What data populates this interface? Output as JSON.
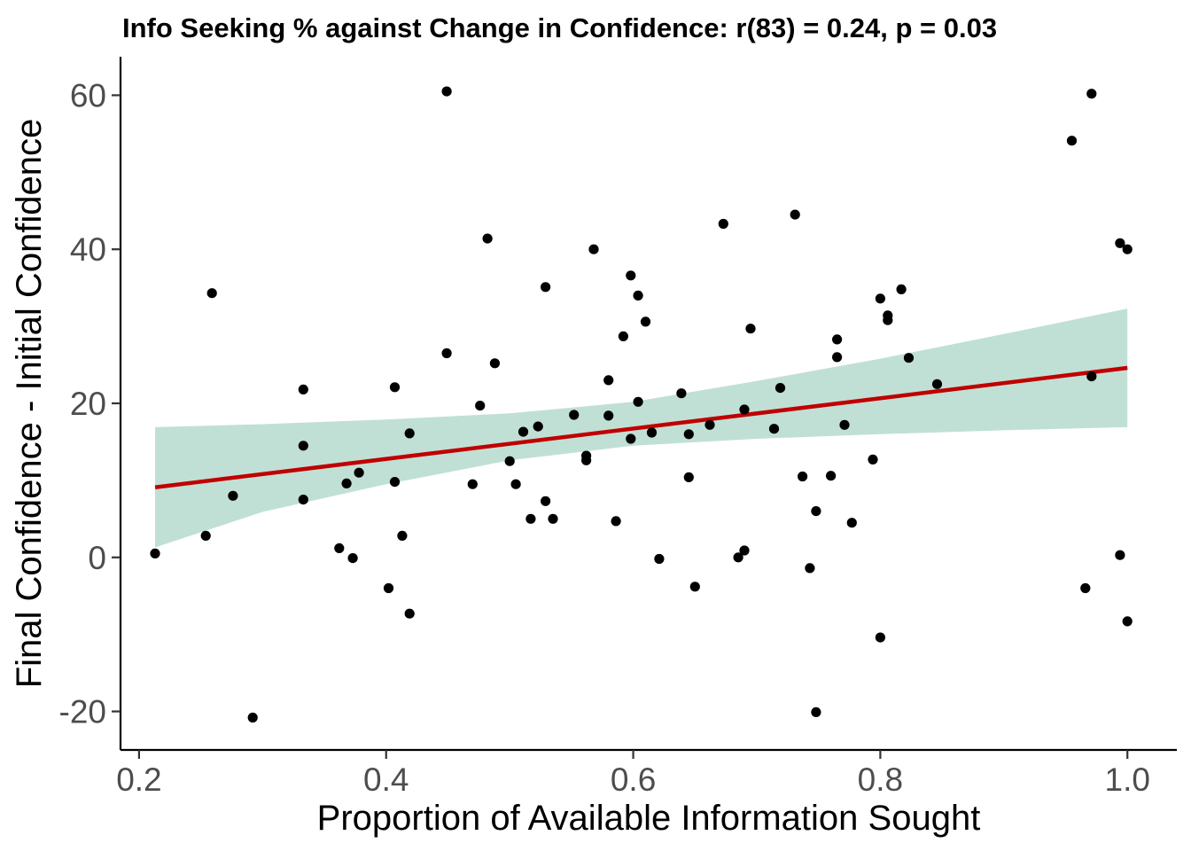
{
  "chart_data": {
    "type": "scatter",
    "title": "Info Seeking % against Change in Confidence: r(83) = 0.24, p = 0.03",
    "xlabel": "Proportion of Available Information Sought",
    "ylabel": "Final Confidence - Initial Confidence",
    "xlim": [
      0.185,
      1.04
    ],
    "ylim": [
      -25,
      65
    ],
    "xticks": [
      0.2,
      0.4,
      0.6,
      0.8,
      1.0
    ],
    "xtick_labels": [
      "0.2",
      "0.4",
      "0.6",
      "0.8",
      "1.0"
    ],
    "yticks": [
      -20,
      0,
      20,
      40,
      60
    ],
    "ytick_labels": [
      "-20",
      "0",
      "20",
      "40",
      "60"
    ],
    "grid": false,
    "legend": "none",
    "colors": {
      "points": "#000000",
      "fit_line": "#c00000",
      "ribbon": "#9fcfbf"
    },
    "points": [
      {
        "x": 0.213,
        "y": 0.5
      },
      {
        "x": 0.254,
        "y": 2.8
      },
      {
        "x": 0.259,
        "y": 34.3
      },
      {
        "x": 0.276,
        "y": 8.0
      },
      {
        "x": 0.292,
        "y": -20.8
      },
      {
        "x": 0.333,
        "y": 21.8
      },
      {
        "x": 0.333,
        "y": 14.5
      },
      {
        "x": 0.333,
        "y": 7.5
      },
      {
        "x": 0.362,
        "y": 1.2
      },
      {
        "x": 0.368,
        "y": 9.6
      },
      {
        "x": 0.373,
        "y": -0.1
      },
      {
        "x": 0.378,
        "y": 11.0
      },
      {
        "x": 0.402,
        "y": -4.0
      },
      {
        "x": 0.407,
        "y": 22.1
      },
      {
        "x": 0.407,
        "y": 9.8
      },
      {
        "x": 0.413,
        "y": 2.8
      },
      {
        "x": 0.419,
        "y": 16.1
      },
      {
        "x": 0.419,
        "y": -7.3
      },
      {
        "x": 0.449,
        "y": 60.5
      },
      {
        "x": 0.449,
        "y": 26.5
      },
      {
        "x": 0.47,
        "y": 9.5
      },
      {
        "x": 0.476,
        "y": 19.7
      },
      {
        "x": 0.482,
        "y": 41.4
      },
      {
        "x": 0.488,
        "y": 25.2
      },
      {
        "x": 0.5,
        "y": 12.5
      },
      {
        "x": 0.505,
        "y": 9.5
      },
      {
        "x": 0.511,
        "y": 16.3
      },
      {
        "x": 0.517,
        "y": 5.0
      },
      {
        "x": 0.523,
        "y": 17.0
      },
      {
        "x": 0.529,
        "y": 35.1
      },
      {
        "x": 0.529,
        "y": 7.3
      },
      {
        "x": 0.535,
        "y": 5.0
      },
      {
        "x": 0.552,
        "y": 18.5
      },
      {
        "x": 0.562,
        "y": 13.2
      },
      {
        "x": 0.562,
        "y": 12.6
      },
      {
        "x": 0.568,
        "y": 40.0
      },
      {
        "x": 0.58,
        "y": 23.0
      },
      {
        "x": 0.58,
        "y": 18.4
      },
      {
        "x": 0.586,
        "y": 4.7
      },
      {
        "x": 0.592,
        "y": 28.7
      },
      {
        "x": 0.598,
        "y": 36.6
      },
      {
        "x": 0.598,
        "y": 15.4
      },
      {
        "x": 0.604,
        "y": 34.0
      },
      {
        "x": 0.604,
        "y": 20.2
      },
      {
        "x": 0.61,
        "y": 30.6
      },
      {
        "x": 0.615,
        "y": 16.2
      },
      {
        "x": 0.621,
        "y": -0.2
      },
      {
        "x": 0.639,
        "y": 21.3
      },
      {
        "x": 0.645,
        "y": 16.0
      },
      {
        "x": 0.645,
        "y": 10.4
      },
      {
        "x": 0.65,
        "y": -3.8
      },
      {
        "x": 0.662,
        "y": 17.2
      },
      {
        "x": 0.673,
        "y": 43.3
      },
      {
        "x": 0.685,
        "y": 0.0
      },
      {
        "x": 0.69,
        "y": 19.2
      },
      {
        "x": 0.69,
        "y": 0.9
      },
      {
        "x": 0.695,
        "y": 29.7
      },
      {
        "x": 0.714,
        "y": 16.7
      },
      {
        "x": 0.719,
        "y": 22.0
      },
      {
        "x": 0.731,
        "y": 44.5
      },
      {
        "x": 0.737,
        "y": 10.5
      },
      {
        "x": 0.743,
        "y": -1.4
      },
      {
        "x": 0.748,
        "y": 6.0
      },
      {
        "x": 0.748,
        "y": -20.1
      },
      {
        "x": 0.76,
        "y": 10.6
      },
      {
        "x": 0.765,
        "y": 28.3
      },
      {
        "x": 0.765,
        "y": 26.0
      },
      {
        "x": 0.771,
        "y": 17.2
      },
      {
        "x": 0.777,
        "y": 4.5
      },
      {
        "x": 0.794,
        "y": 12.7
      },
      {
        "x": 0.8,
        "y": 33.6
      },
      {
        "x": 0.8,
        "y": -10.4
      },
      {
        "x": 0.806,
        "y": 31.4
      },
      {
        "x": 0.806,
        "y": 30.8
      },
      {
        "x": 0.817,
        "y": 34.8
      },
      {
        "x": 0.823,
        "y": 25.9
      },
      {
        "x": 0.846,
        "y": 22.5
      },
      {
        "x": 0.955,
        "y": 54.1
      },
      {
        "x": 0.966,
        "y": -4.0
      },
      {
        "x": 0.971,
        "y": 60.2
      },
      {
        "x": 0.971,
        "y": 23.5
      },
      {
        "x": 0.994,
        "y": 40.8
      },
      {
        "x": 0.994,
        "y": 0.3
      },
      {
        "x": 1.0,
        "y": 40.0
      },
      {
        "x": 1.0,
        "y": -8.3
      }
    ],
    "fit_line": {
      "x": [
        0.213,
        1.0
      ],
      "y": [
        9.1,
        24.6
      ]
    },
    "confidence_band": {
      "x": [
        0.213,
        0.3,
        0.4,
        0.5,
        0.6,
        0.7,
        0.8,
        0.9,
        1.0
      ],
      "lower": [
        1.3,
        5.9,
        9.5,
        12.6,
        14.5,
        15.4,
        16.0,
        16.5,
        16.9
      ],
      "upper": [
        16.9,
        17.3,
        17.9,
        18.7,
        20.2,
        22.9,
        25.8,
        29.0,
        32.3
      ]
    }
  }
}
